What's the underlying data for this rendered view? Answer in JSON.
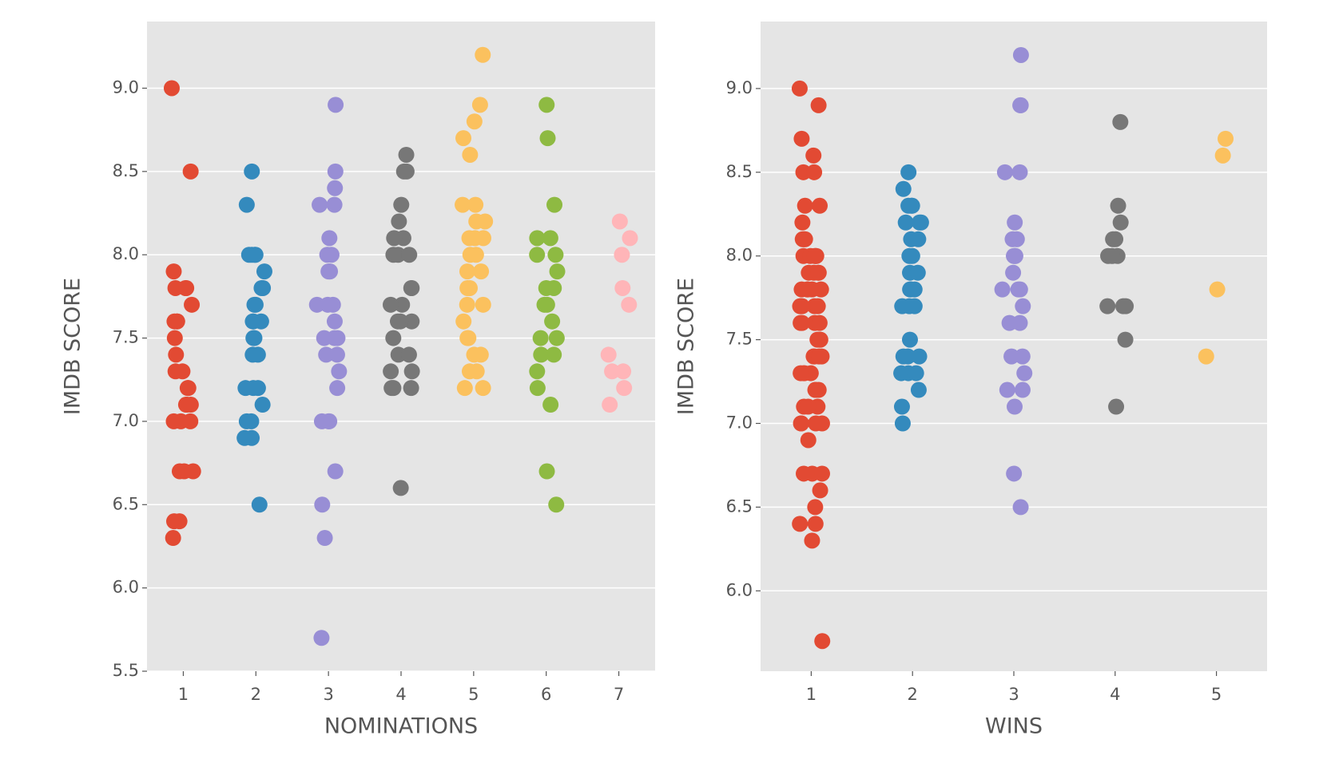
{
  "chart_data": [
    {
      "type": "strip",
      "xlabel": "NOMINATIONS",
      "ylabel": "IMDB SCORE",
      "categories": [
        1,
        2,
        3,
        4,
        5,
        6,
        7
      ],
      "colors": [
        "#E24A33",
        "#348ABD",
        "#988ED5",
        "#777777",
        "#FBC15E",
        "#8EBA42",
        "#FFB5B8"
      ],
      "values": [
        [
          9.0,
          8.5,
          7.9,
          7.8,
          7.8,
          7.8,
          7.7,
          7.6,
          7.6,
          7.6,
          7.5,
          7.4,
          7.3,
          7.3,
          7.2,
          7.2,
          7.1,
          7.1,
          7.1,
          7.0,
          7.0,
          7.0,
          6.7,
          6.7,
          6.7,
          6.4,
          6.4,
          6.3
        ],
        [
          8.5,
          8.3,
          8.0,
          8.0,
          8.0,
          8.0,
          7.9,
          7.8,
          7.8,
          7.7,
          7.7,
          7.6,
          7.6,
          7.6,
          7.5,
          7.5,
          7.4,
          7.4,
          7.2,
          7.2,
          7.2,
          7.1,
          7.0,
          7.0,
          6.9,
          6.9,
          6.5
        ],
        [
          8.9,
          8.5,
          8.4,
          8.3,
          8.3,
          8.1,
          8.0,
          8.0,
          7.9,
          7.9,
          7.9,
          7.7,
          7.7,
          7.7,
          7.6,
          7.5,
          7.5,
          7.5,
          7.4,
          7.4,
          7.3,
          7.2,
          7.0,
          7.0,
          7.0,
          6.7,
          6.5,
          6.3,
          5.7
        ],
        [
          8.6,
          8.5,
          8.5,
          8.3,
          8.2,
          8.1,
          8.1,
          8.0,
          8.0,
          8.0,
          7.8,
          7.8,
          7.7,
          7.7,
          7.6,
          7.6,
          7.6,
          7.5,
          7.4,
          7.4,
          7.3,
          7.3,
          7.2,
          7.2,
          7.2,
          6.6
        ],
        [
          9.2,
          8.9,
          8.8,
          8.7,
          8.6,
          8.3,
          8.3,
          8.2,
          8.2,
          8.1,
          8.1,
          8.1,
          8.0,
          8.0,
          7.9,
          7.9,
          7.8,
          7.8,
          7.7,
          7.7,
          7.6,
          7.5,
          7.5,
          7.4,
          7.4,
          7.3,
          7.3,
          7.2,
          7.2
        ],
        [
          8.9,
          8.7,
          8.3,
          8.1,
          8.1,
          8.0,
          8.0,
          7.9,
          7.8,
          7.8,
          7.7,
          7.7,
          7.6,
          7.5,
          7.5,
          7.4,
          7.4,
          7.3,
          7.2,
          7.1,
          6.7,
          6.5
        ],
        [
          8.2,
          8.1,
          8.0,
          7.8,
          7.7,
          7.4,
          7.3,
          7.3,
          7.2,
          7.1
        ]
      ],
      "ylim": [
        5.5,
        9.4
      ],
      "yticks": [
        {
          "value": 5.5,
          "label": "5.5"
        },
        {
          "value": 6,
          "label": "6.0"
        },
        {
          "value": 6.5,
          "label": "6.5"
        },
        {
          "value": 7,
          "label": "7.0"
        },
        {
          "value": 7.5,
          "label": "7.5"
        },
        {
          "value": 8,
          "label": "8.0"
        },
        {
          "value": 8.5,
          "label": "8.5"
        },
        {
          "value": 9,
          "label": "9.0"
        }
      ],
      "grid": true
    },
    {
      "type": "strip",
      "xlabel": "WINS",
      "ylabel": "IMDB SCORE",
      "categories": [
        1,
        2,
        3,
        4,
        5
      ],
      "colors": [
        "#E24A33",
        "#348ABD",
        "#988ED5",
        "#777777",
        "#FBC15E"
      ],
      "values": [
        [
          9.0,
          8.9,
          8.7,
          8.6,
          8.5,
          8.5,
          8.3,
          8.3,
          8.2,
          8.1,
          8.1,
          8.1,
          8.0,
          8.0,
          8.0,
          8.0,
          8.0,
          7.9,
          7.9,
          7.9,
          7.9,
          7.8,
          7.8,
          7.8,
          7.8,
          7.8,
          7.7,
          7.7,
          7.7,
          7.7,
          7.7,
          7.6,
          7.6,
          7.6,
          7.6,
          7.5,
          7.5,
          7.5,
          7.4,
          7.4,
          7.4,
          7.4,
          7.3,
          7.3,
          7.3,
          7.3,
          7.2,
          7.2,
          7.2,
          7.1,
          7.1,
          7.1,
          7.0,
          7.0,
          7.0,
          7.0,
          6.9,
          6.7,
          6.7,
          6.7,
          6.6,
          6.5,
          6.4,
          6.4,
          6.3,
          5.7
        ],
        [
          8.5,
          8.4,
          8.3,
          8.3,
          8.3,
          8.2,
          8.2,
          8.2,
          8.1,
          8.1,
          8.0,
          8.0,
          7.9,
          7.9,
          7.8,
          7.8,
          7.8,
          7.7,
          7.7,
          7.7,
          7.5,
          7.4,
          7.4,
          7.4,
          7.3,
          7.3,
          7.3,
          7.2,
          7.1,
          7.0
        ],
        [
          9.2,
          8.9,
          8.9,
          8.5,
          8.5,
          8.2,
          8.1,
          8.1,
          8.0,
          8.0,
          8.0,
          7.9,
          7.8,
          7.8,
          7.8,
          7.7,
          7.6,
          7.6,
          7.4,
          7.4,
          7.3,
          7.2,
          7.2,
          7.1,
          6.7,
          6.5
        ],
        [
          8.8,
          8.3,
          8.2,
          8.1,
          8.1,
          8.0,
          8.0,
          8.0,
          7.7,
          7.7,
          7.7,
          7.5,
          7.1
        ],
        [
          8.7,
          8.6,
          7.8,
          7.4
        ]
      ],
      "ylim": [
        5.52,
        9.4
      ],
      "yticks": [
        {
          "value": 6,
          "label": "6.0"
        },
        {
          "value": 6.5,
          "label": "6.5"
        },
        {
          "value": 7,
          "label": "7.0"
        },
        {
          "value": 7.5,
          "label": "7.5"
        },
        {
          "value": 8,
          "label": "8.0"
        },
        {
          "value": 8.5,
          "label": "8.5"
        },
        {
          "value": 9,
          "label": "9.0"
        }
      ],
      "grid": true
    }
  ]
}
